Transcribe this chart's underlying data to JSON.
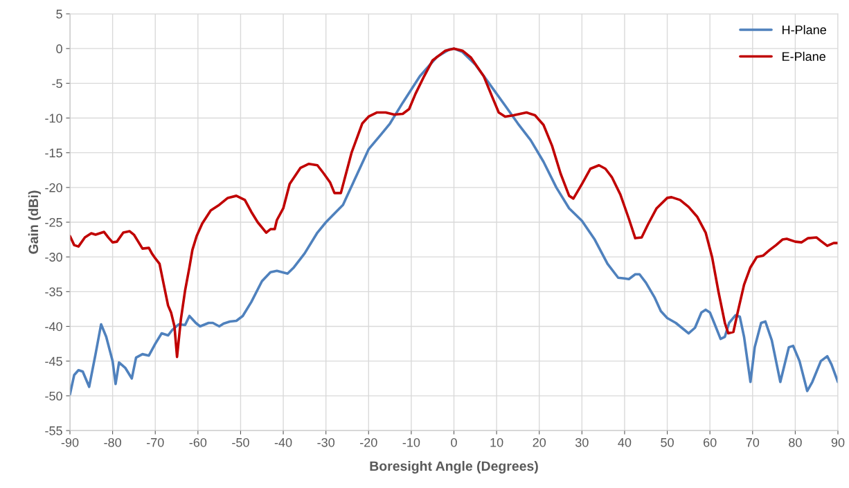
{
  "chart_data": {
    "type": "line",
    "xlabel": "Boresight Angle (Degrees)",
    "ylabel": "Gain (dBi)",
    "xlim": [
      -90,
      90
    ],
    "xticks": [
      -90,
      -80,
      -70,
      -60,
      -50,
      -40,
      -30,
      -20,
      -10,
      0,
      10,
      20,
      30,
      40,
      50,
      60,
      70,
      80,
      90
    ],
    "ylim": [
      -55,
      5
    ],
    "yticks": [
      -55,
      -50,
      -45,
      -40,
      -35,
      -30,
      -25,
      -20,
      -15,
      -10,
      -5,
      0,
      5
    ],
    "grid": true,
    "legend": "top right",
    "marker": "none",
    "line_style": "solid",
    "series": [
      {
        "name": "H-Plane",
        "color": "#4f81bd",
        "x": [
          -90,
          -89,
          -88,
          -87,
          -85.5,
          -84,
          -82.7,
          -81.5,
          -80,
          -79.3,
          -78.5,
          -77,
          -75.5,
          -74.5,
          -73,
          -71.5,
          -70,
          -68.5,
          -67,
          -66,
          -64.5,
          -63,
          -62,
          -60.5,
          -59.5,
          -57.5,
          -56.5,
          -55,
          -54,
          -52.5,
          -51,
          -49.5,
          -47.5,
          -45,
          -43,
          -41.5,
          -39,
          -37.5,
          -35,
          -32,
          -30,
          -26,
          -23,
          -20,
          -17,
          -15,
          -12,
          -8,
          -4,
          -1,
          0,
          2,
          5,
          8,
          12,
          15,
          18,
          21,
          24,
          27,
          30,
          33,
          36,
          38.5,
          40,
          41,
          42.5,
          43.5,
          45,
          47,
          48.5,
          50,
          52,
          54,
          55,
          56.5,
          58,
          59,
          60,
          61,
          62.5,
          63.5,
          64.5,
          66,
          67,
          68,
          69.5,
          70.5,
          72,
          73,
          74.5,
          76.5,
          78.5,
          79.5,
          81,
          82.8,
          84,
          86,
          87.5,
          88.5,
          90
        ],
        "values": [
          -49.8,
          -47,
          -46.3,
          -46.5,
          -48.7,
          -44,
          -39.7,
          -41.5,
          -45,
          -48.3,
          -45.2,
          -46,
          -47.5,
          -44.5,
          -44,
          -44.2,
          -42.5,
          -41,
          -41.3,
          -40.5,
          -39.7,
          -39.8,
          -38.5,
          -39.5,
          -40,
          -39.5,
          -39.5,
          -40,
          -39.6,
          -39.3,
          -39.2,
          -38.5,
          -36.5,
          -33.5,
          -32.2,
          -32,
          -32.4,
          -31.5,
          -29.5,
          -26.5,
          -25,
          -22.5,
          -18.5,
          -14.5,
          -12.3,
          -10.8,
          -7.8,
          -4,
          -1.2,
          -0.1,
          0,
          -0.5,
          -2.3,
          -4.8,
          -8.2,
          -10.8,
          -13.2,
          -16.3,
          -20,
          -23,
          -24.8,
          -27.5,
          -31,
          -33,
          -33.1,
          -33.2,
          -32.5,
          -32.5,
          -33.7,
          -35.8,
          -37.8,
          -38.8,
          -39.5,
          -40.5,
          -41,
          -40.2,
          -38,
          -37.6,
          -38,
          -39.5,
          -41.8,
          -41.5,
          -39.5,
          -38.4,
          -38.6,
          -41.5,
          -48,
          -43,
          -39.5,
          -39.3,
          -42,
          -48,
          -43,
          -42.8,
          -45,
          -49.3,
          -48,
          -45,
          -44.3,
          -45.5,
          -48
        ]
      },
      {
        "name": "E-Plane",
        "color": "#c00000",
        "x": [
          -90,
          -89,
          -88,
          -86.5,
          -85,
          -84,
          -82.5,
          -82,
          -81,
          -80,
          -79,
          -77.5,
          -76,
          -75,
          -73,
          -71.5,
          -70.8,
          -70,
          -69,
          -68,
          -67,
          -66.3,
          -65.5,
          -64.9,
          -64,
          -63,
          -62,
          -61.3,
          -60.3,
          -59,
          -57,
          -55,
          -53,
          -51,
          -49,
          -47.5,
          -46,
          -44,
          -43,
          -42,
          -41.5,
          -40,
          -38.5,
          -36,
          -34,
          -32,
          -30.5,
          -29,
          -28,
          -26.5,
          -24,
          -21.5,
          -20,
          -18,
          -16,
          -14,
          -12,
          -10.5,
          -9,
          -7,
          -5,
          -2,
          0,
          2,
          4,
          7,
          9,
          10.5,
          12,
          14,
          15.5,
          17,
          19,
          21,
          23,
          25,
          27,
          28,
          30,
          32,
          34,
          35.5,
          37,
          39,
          41,
          42.5,
          44,
          45.5,
          47.5,
          50,
          51,
          53,
          55,
          57,
          59,
          60.5,
          62,
          63.5,
          64.3,
          65.5,
          66.5,
          68,
          69.5,
          71,
          72.5,
          74,
          75.5,
          77,
          78,
          80,
          81.5,
          83,
          85,
          86,
          87.5,
          89,
          90
        ],
        "values": [
          -27,
          -28.3,
          -28.5,
          -27.2,
          -26.6,
          -26.8,
          -26.5,
          -26.4,
          -27.2,
          -27.9,
          -27.8,
          -26.5,
          -26.3,
          -26.8,
          -28.8,
          -28.7,
          -29.5,
          -30.2,
          -31,
          -34,
          -37,
          -38,
          -40,
          -44.4,
          -39,
          -34.8,
          -31.5,
          -29,
          -27,
          -25.2,
          -23.3,
          -22.5,
          -21.5,
          -21.2,
          -21.8,
          -23.5,
          -25,
          -26.5,
          -26,
          -26,
          -24.7,
          -23,
          -19.5,
          -17.2,
          -16.6,
          -16.8,
          -18,
          -19.3,
          -20.8,
          -20.8,
          -15,
          -10.8,
          -9.8,
          -9.2,
          -9.2,
          -9.5,
          -9.4,
          -8.7,
          -6.5,
          -4,
          -1.7,
          -0.3,
          0,
          -0.3,
          -1.3,
          -4,
          -7,
          -9.2,
          -9.8,
          -9.6,
          -9.4,
          -9.2,
          -9.6,
          -11,
          -14,
          -18,
          -21.2,
          -21.6,
          -19.5,
          -17.3,
          -16.8,
          -17.3,
          -18.5,
          -21,
          -24.5,
          -27.3,
          -27.2,
          -25.3,
          -23,
          -21.5,
          -21.4,
          -21.8,
          -22.8,
          -24.2,
          -26.5,
          -30,
          -35,
          -39.5,
          -41,
          -40.8,
          -38,
          -34,
          -31.5,
          -30,
          -29.8,
          -29,
          -28.3,
          -27.5,
          -27.4,
          -27.8,
          -27.9,
          -27.3,
          -27.2,
          -27.7,
          -28.4,
          -28,
          -28
        ]
      }
    ]
  }
}
